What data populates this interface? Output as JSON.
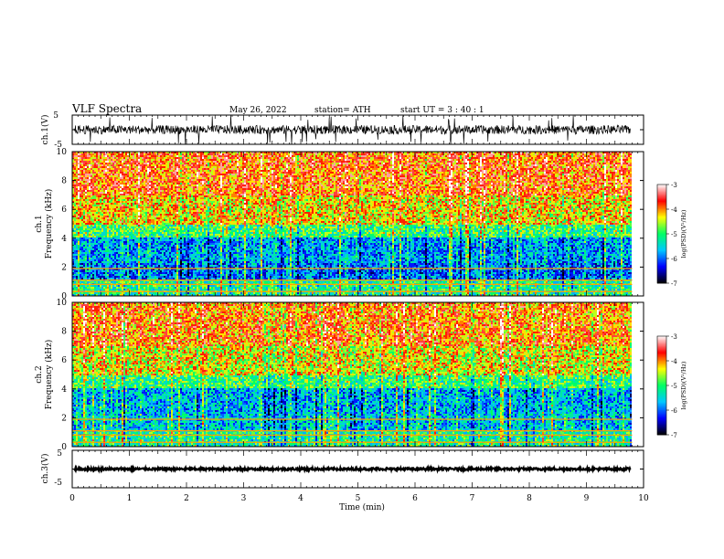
{
  "header": {
    "title": "VLF  Spectra",
    "date": "May 26, 2022",
    "station": "station= ATH",
    "start": "start  UT  =    3  : 40 : 1"
  },
  "colors": {
    "background": "#ffffff",
    "axis": "#000000",
    "colormap": [
      "#000000",
      "#0000ff",
      "#00c8ff",
      "#00ff64",
      "#ffff00",
      "#ff0000",
      "#ffffff"
    ]
  },
  "chart_data": [
    {
      "id": "ch1-waveform",
      "type": "line",
      "ylabel": "ch.1(V)",
      "ylim": [
        -5,
        5
      ],
      "yticks": [
        5,
        -5
      ],
      "xlim": [
        0,
        10
      ],
      "description_values": {
        "baseline_v": 0,
        "typical_amplitude_v": 1.5,
        "spike_amplitude_v": 5
      }
    },
    {
      "id": "ch1-spectrogram",
      "type": "heatmap",
      "ylabel_line1": "ch.1",
      "ylabel_line2": "Frequency  (kHz)",
      "ylim": [
        0,
        10
      ],
      "yticks": [
        10,
        8,
        6,
        4,
        2,
        0
      ],
      "xlim": [
        0,
        9.8
      ],
      "colorbar": {
        "label": "log(PSD)(V²/Hz)",
        "range": [
          -7,
          -3
        ],
        "ticks": [
          "-3",
          "-4",
          "-5",
          "-6",
          "-7"
        ]
      },
      "bands": [
        {
          "from_khz": 0,
          "to_khz": 1.2,
          "level": -5.2
        },
        {
          "from_khz": 1.2,
          "to_khz": 2.3,
          "level": -6.0
        },
        {
          "from_khz": 2.3,
          "to_khz": 4.0,
          "level": -5.8
        },
        {
          "from_khz": 4.0,
          "to_khz": 5.0,
          "level": -5.0
        },
        {
          "from_khz": 5.0,
          "to_khz": 7.0,
          "level": -4.3
        },
        {
          "from_khz": 7.0,
          "to_khz": 10.0,
          "level": -3.9
        }
      ]
    },
    {
      "id": "ch2-spectrogram",
      "type": "heatmap",
      "ylabel_line1": "ch.2",
      "ylabel_line2": "Frequency  (kHz)",
      "ylim": [
        0,
        10
      ],
      "yticks": [
        10,
        8,
        6,
        4,
        2,
        0
      ],
      "xlim": [
        0,
        9.8
      ],
      "colorbar": {
        "label": "log(PSD)(V²/Hz)",
        "range": [
          -7,
          -3
        ],
        "ticks": [
          "-3",
          "-4",
          "-5",
          "-6",
          "-7"
        ]
      },
      "bands": [
        {
          "from_khz": 0,
          "to_khz": 1.2,
          "level": -5.2
        },
        {
          "from_khz": 1.2,
          "to_khz": 2.3,
          "level": -5.6
        },
        {
          "from_khz": 2.3,
          "to_khz": 4.0,
          "level": -5.7
        },
        {
          "from_khz": 4.0,
          "to_khz": 5.0,
          "level": -5.0
        },
        {
          "from_khz": 5.0,
          "to_khz": 7.0,
          "level": -4.4
        },
        {
          "from_khz": 7.0,
          "to_khz": 10.0,
          "level": -4.0
        }
      ]
    },
    {
      "id": "ch3-waveform",
      "type": "line",
      "ylabel": "ch.3(V)",
      "ylim": [
        -5,
        5
      ],
      "yticks": [
        5,
        -5
      ],
      "xlim": [
        0,
        10
      ],
      "description_values": {
        "baseline_v": 0,
        "typical_amplitude_v": 0.3
      }
    }
  ],
  "xaxis": {
    "label": "Time  (min)",
    "ticks": [
      "0",
      "1",
      "2",
      "3",
      "4",
      "5",
      "6",
      "7",
      "8",
      "9",
      "10"
    ],
    "range": [
      0,
      10
    ]
  }
}
